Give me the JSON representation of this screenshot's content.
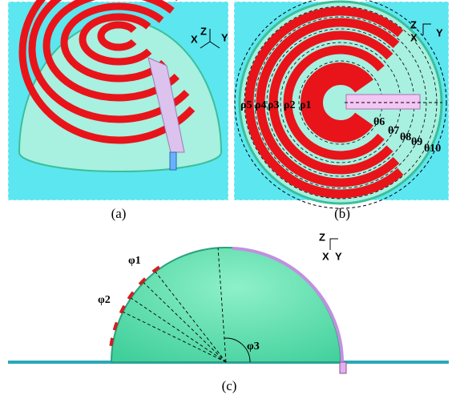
{
  "panels": [
    {
      "label": "(a)",
      "axes": [
        "Z",
        "X",
        "Y"
      ]
    },
    {
      "label": "(b)",
      "axes": [
        "Z",
        "X",
        "Y"
      ],
      "radii": [
        "ρ5",
        "ρ4",
        "ρ3",
        "ρ2",
        "ρ1"
      ],
      "angles": [
        "θ6",
        "θ7",
        "θ8",
        "θ9",
        "θ10"
      ]
    },
    {
      "label": "(c)",
      "axes": [
        "Z",
        "X",
        "Y"
      ],
      "angles": [
        "φ1",
        "φ2",
        "φ3"
      ]
    }
  ]
}
